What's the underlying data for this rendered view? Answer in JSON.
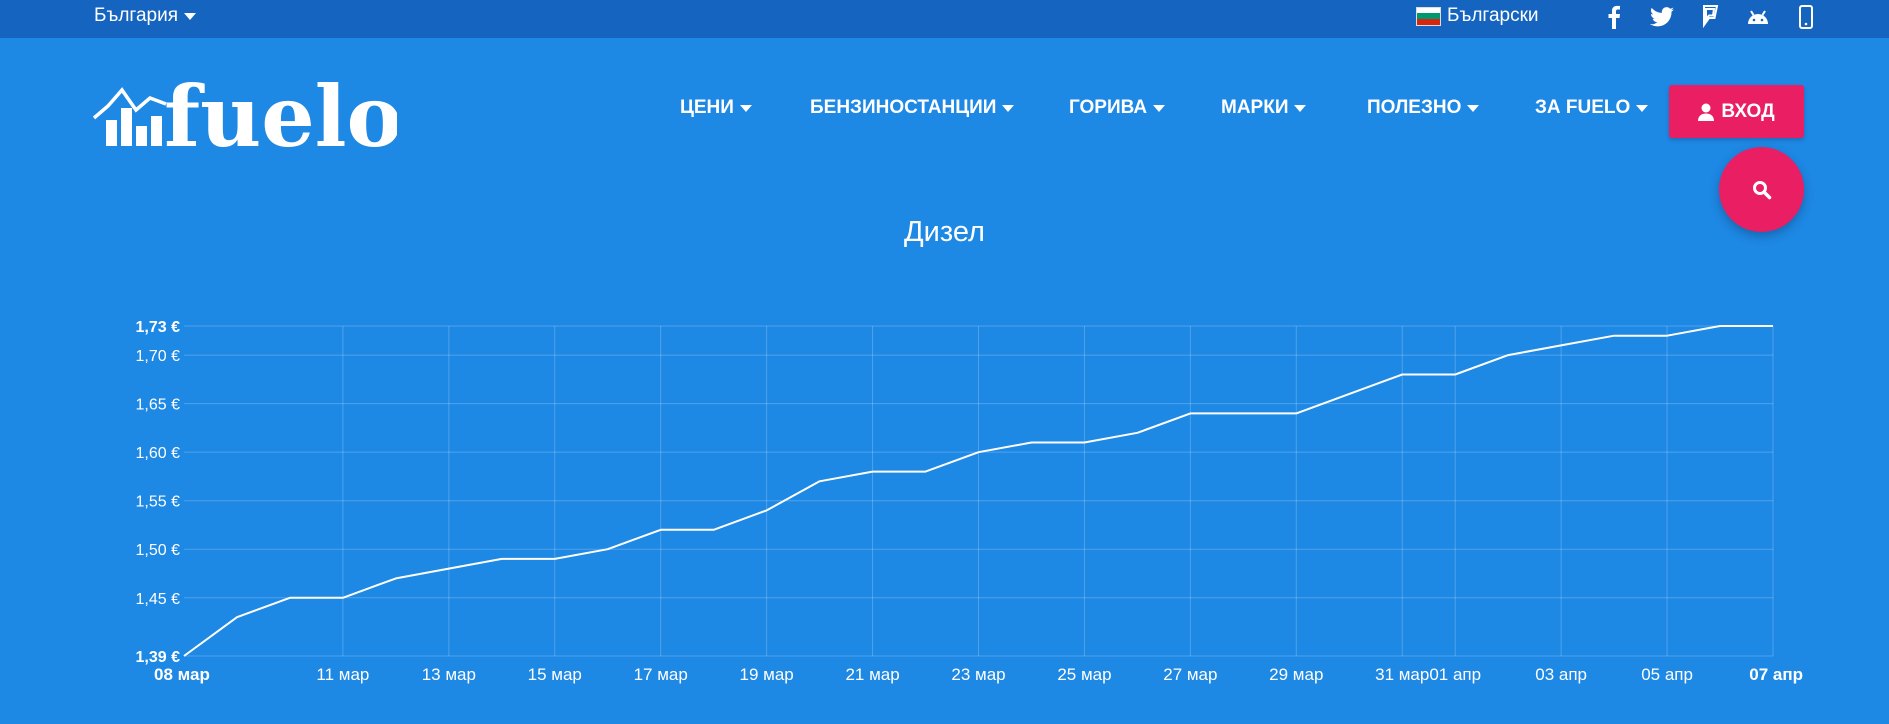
{
  "topbar": {
    "country": "България",
    "language": "Български",
    "social_icons": [
      "facebook-icon",
      "twitter-icon",
      "foursquare-icon",
      "android-icon",
      "mobile-icon"
    ]
  },
  "nav": {
    "items": [
      {
        "label": "ЦЕНИ"
      },
      {
        "label": "БЕНЗИНОСТАНЦИИ"
      },
      {
        "label": "ГОРИВА"
      },
      {
        "label": "МАРКИ"
      },
      {
        "label": "ПОЛЕЗНО"
      },
      {
        "label": "ЗА FUELO"
      }
    ],
    "login_label": "ВХОД"
  },
  "logo_text": "fuelo",
  "colors": {
    "background": "#1e88e5",
    "topbar": "#1565c0",
    "accent": "#e91e63",
    "line": "#ffffff"
  },
  "chart_data": {
    "type": "line",
    "title": "Дизел",
    "xlabel": "",
    "ylabel": "",
    "ylim": [
      1.39,
      1.73
    ],
    "y_ticks": [
      {
        "value": 1.73,
        "label": "1,73 €",
        "bold": true
      },
      {
        "value": 1.7,
        "label": "1,70 €",
        "bold": false
      },
      {
        "value": 1.65,
        "label": "1,65 €",
        "bold": false
      },
      {
        "value": 1.6,
        "label": "1,60 €",
        "bold": false
      },
      {
        "value": 1.55,
        "label": "1,55 €",
        "bold": false
      },
      {
        "value": 1.5,
        "label": "1,50 €",
        "bold": false
      },
      {
        "value": 1.45,
        "label": "1,45 €",
        "bold": false
      },
      {
        "value": 1.39,
        "label": "1,39 €",
        "bold": true
      }
    ],
    "x_ticks": [
      {
        "label": "08 мар",
        "bold": true
      },
      {
        "label": "11 мар",
        "bold": false
      },
      {
        "label": "13 мар",
        "bold": false
      },
      {
        "label": "15 мар",
        "bold": false
      },
      {
        "label": "17 мар",
        "bold": false
      },
      {
        "label": "19 мар",
        "bold": false
      },
      {
        "label": "21 мар",
        "bold": false
      },
      {
        "label": "23 мар",
        "bold": false
      },
      {
        "label": "25 мар",
        "bold": false
      },
      {
        "label": "27 мар",
        "bold": false
      },
      {
        "label": "29 мар",
        "bold": false
      },
      {
        "label": "31 мар",
        "bold": false
      },
      {
        "label": "01 апр",
        "bold": false
      },
      {
        "label": "03 апр",
        "bold": false
      },
      {
        "label": "05 апр",
        "bold": false
      },
      {
        "label": "07 апр",
        "bold": true
      }
    ],
    "x_tick_dates": [
      "2025-03-08",
      "2025-03-11",
      "2025-03-13",
      "2025-03-15",
      "2025-03-17",
      "2025-03-19",
      "2025-03-21",
      "2025-03-23",
      "2025-03-25",
      "2025-03-27",
      "2025-03-29",
      "2025-03-31",
      "2025-04-01",
      "2025-04-03",
      "2025-04-05",
      "2025-04-07"
    ],
    "x_range": [
      "2025-03-08",
      "2025-04-07"
    ],
    "grid": true,
    "series": [
      {
        "x": [
          "2025-03-08",
          "2025-03-09",
          "2025-03-10",
          "2025-03-11",
          "2025-03-12",
          "2025-03-13",
          "2025-03-14",
          "2025-03-15",
          "2025-03-16",
          "2025-03-17",
          "2025-03-18",
          "2025-03-19",
          "2025-03-20",
          "2025-03-21",
          "2025-03-22",
          "2025-03-23",
          "2025-03-24",
          "2025-03-25",
          "2025-03-26",
          "2025-03-27",
          "2025-03-28",
          "2025-03-29",
          "2025-03-30",
          "2025-03-31",
          "2025-04-01",
          "2025-04-02",
          "2025-04-03",
          "2025-04-04",
          "2025-04-05",
          "2025-04-06",
          "2025-04-07"
        ],
        "values": [
          1.39,
          1.43,
          1.45,
          1.45,
          1.47,
          1.48,
          1.49,
          1.49,
          1.5,
          1.52,
          1.52,
          1.54,
          1.57,
          1.58,
          1.58,
          1.6,
          1.61,
          1.61,
          1.62,
          1.64,
          1.64,
          1.64,
          1.66,
          1.68,
          1.68,
          1.7,
          1.71,
          1.72,
          1.72,
          1.73,
          1.73
        ]
      }
    ]
  }
}
